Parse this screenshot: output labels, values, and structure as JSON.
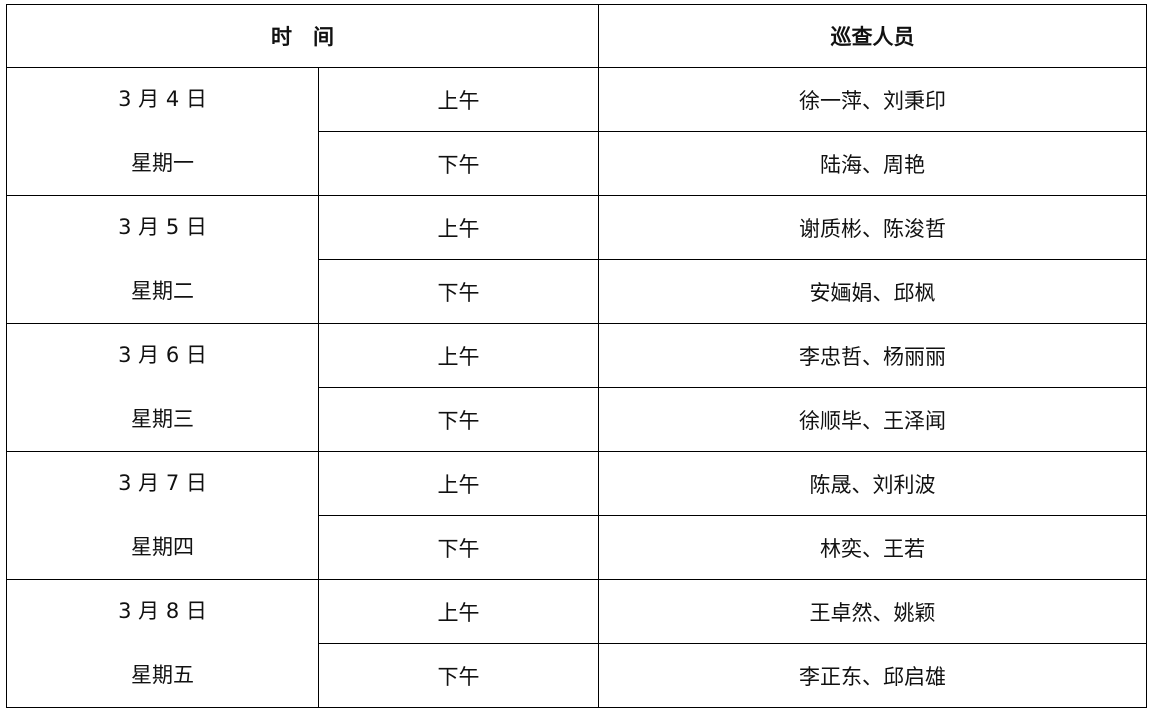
{
  "header": {
    "time": "时　间",
    "staff": "巡查人员"
  },
  "days": [
    {
      "date": "3 月 4 日",
      "weekday": "星期一",
      "am_label": "上午",
      "am": "徐一萍、刘秉印",
      "pm_label": "下午",
      "pm": "陆海、周艳"
    },
    {
      "date": "3 月 5 日",
      "weekday": "星期二",
      "am_label": "上午",
      "am": "谢质彬、陈浚哲",
      "pm_label": "下午",
      "pm": "安婳娟、邱枫"
    },
    {
      "date": "3 月 6 日",
      "weekday": "星期三",
      "am_label": "上午",
      "am": "李忠哲、杨丽丽",
      "pm_label": "下午",
      "pm": "徐顺毕、王泽闻"
    },
    {
      "date": "3 月 7 日",
      "weekday": "星期四",
      "am_label": "上午",
      "am": "陈晟、刘利波",
      "pm_label": "下午",
      "pm": "林奕、王若"
    },
    {
      "date": "3 月 8 日",
      "weekday": "星期五",
      "am_label": "上午",
      "am": "王卓然、姚颖",
      "pm_label": "下午",
      "pm": "李正东、邱启雄"
    }
  ]
}
